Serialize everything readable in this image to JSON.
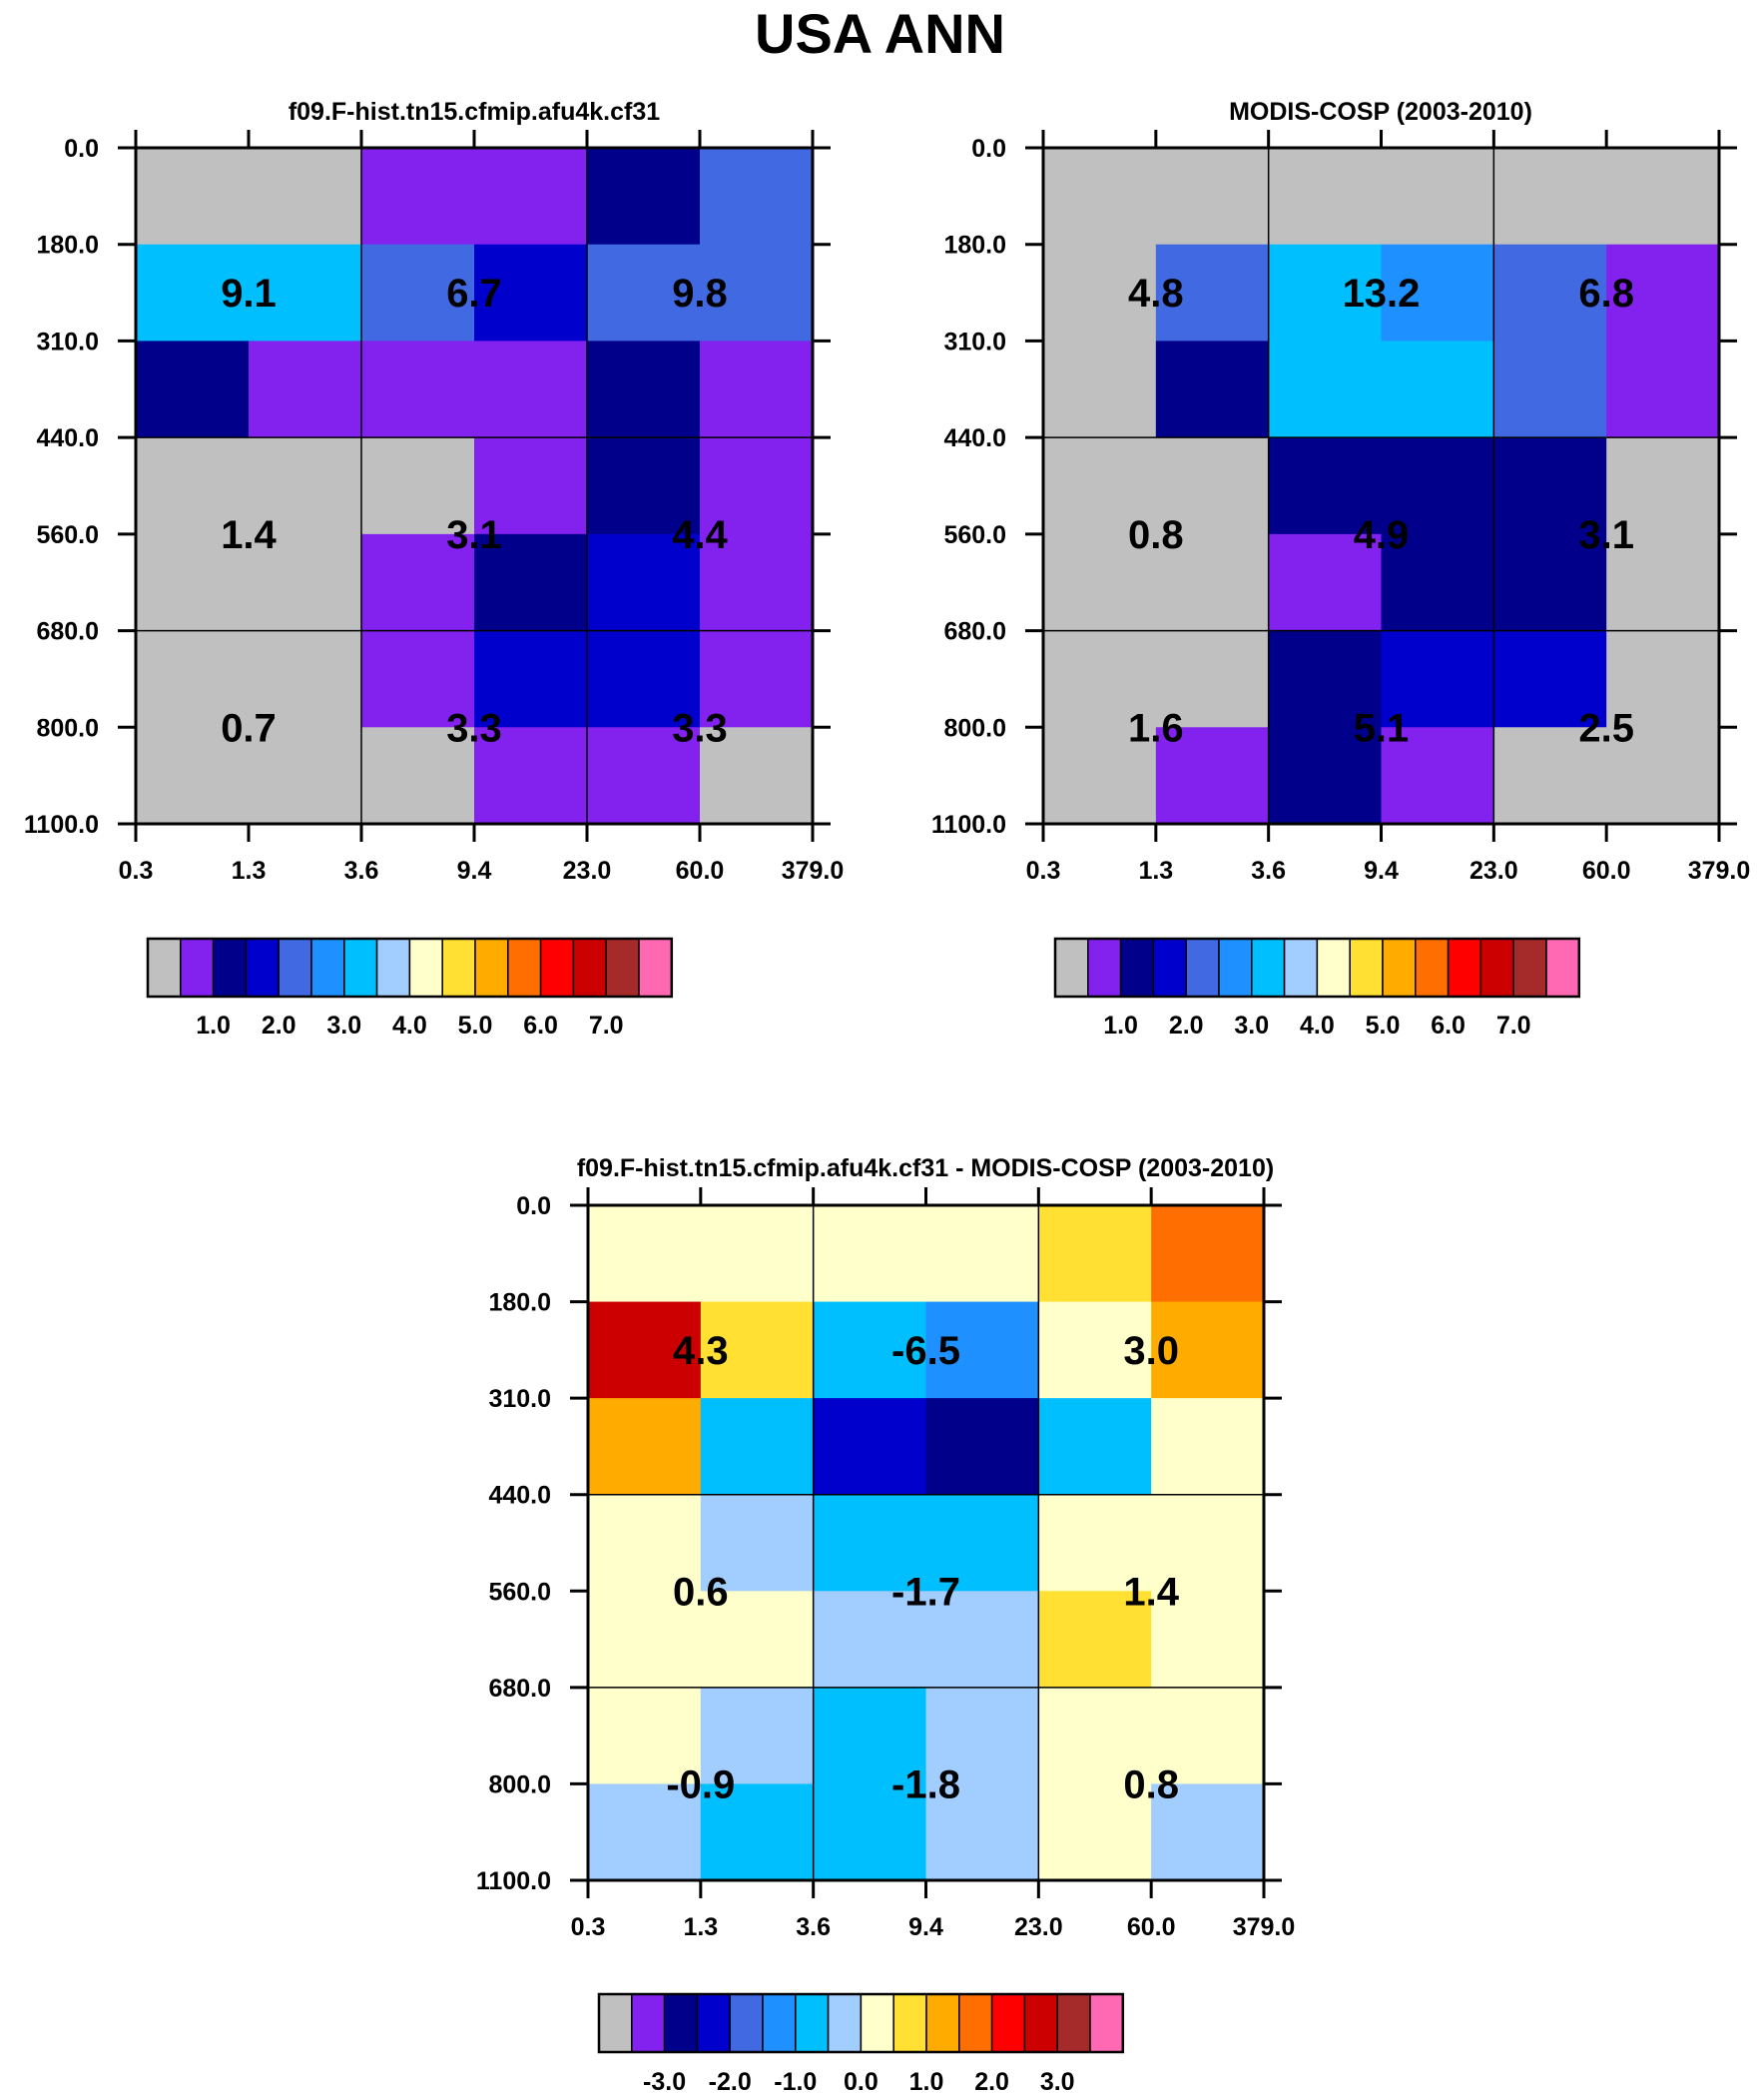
{
  "title": "USA ANN",
  "colors": [
    "#c0c0c0",
    "#8321ee",
    "#00008b",
    "#0000cd",
    "#4169e1",
    "#1e90ff",
    "#00bfff",
    "#a2cdff",
    "#ffffcc",
    "#ffe033",
    "#ffab00",
    "#ff6e00",
    "#ff0000",
    "#cc0000",
    "#a52a2a",
    "#ff69b4"
  ],
  "chart_data": [
    {
      "type": "heatmap",
      "title": "f09.F-hist.tn15.cfmip.afu4k.cf31",
      "x_tick_labels": [
        "0.3",
        "1.3",
        "3.6",
        "9.4",
        "23.0",
        "60.0",
        "379.0"
      ],
      "y_tick_labels": [
        "0.0",
        "180.0",
        "310.0",
        "440.0",
        "560.0",
        "680.0",
        "800.0",
        "1100.0"
      ],
      "cell_color_index": [
        [
          0,
          0,
          1,
          1,
          2,
          4
        ],
        [
          6,
          6,
          4,
          3,
          4,
          4
        ],
        [
          2,
          1,
          1,
          1,
          2,
          1
        ],
        [
          0,
          0,
          0,
          1,
          2,
          1
        ],
        [
          0,
          0,
          1,
          2,
          3,
          1
        ],
        [
          0,
          0,
          1,
          3,
          3,
          1
        ],
        [
          0,
          0,
          0,
          1,
          1,
          0
        ]
      ],
      "box_values": [
        "9.1",
        "6.7",
        "9.8",
        "1.4",
        "3.1",
        "4.4",
        "0.7",
        "3.3",
        "3.3"
      ],
      "colorbar": {
        "tick_labels": [
          "1.0",
          "2.0",
          "3.0",
          "4.0",
          "5.0",
          "6.0",
          "7.0"
        ],
        "first_label_box": 2,
        "color_index": [
          0,
          1,
          2,
          3,
          4,
          5,
          6,
          7,
          8,
          9,
          10,
          11,
          12,
          13,
          14,
          15
        ]
      }
    },
    {
      "type": "heatmap",
      "title": "MODIS-COSP (2003-2010)",
      "x_tick_labels": [
        "0.3",
        "1.3",
        "3.6",
        "9.4",
        "23.0",
        "60.0",
        "379.0"
      ],
      "y_tick_labels": [
        "0.0",
        "180.0",
        "310.0",
        "440.0",
        "560.0",
        "680.0",
        "800.0",
        "1100.0"
      ],
      "cell_color_index": [
        [
          0,
          0,
          0,
          0,
          0,
          0
        ],
        [
          0,
          4,
          6,
          5,
          4,
          1
        ],
        [
          0,
          2,
          6,
          6,
          4,
          1
        ],
        [
          0,
          0,
          2,
          2,
          2,
          0
        ],
        [
          0,
          0,
          1,
          2,
          2,
          0
        ],
        [
          0,
          0,
          2,
          3,
          3,
          0
        ],
        [
          0,
          1,
          2,
          1,
          0,
          0
        ]
      ],
      "box_values": [
        "4.8",
        "13.2",
        "6.8",
        "0.8",
        "4.9",
        "3.1",
        "1.6",
        "5.1",
        "2.5"
      ],
      "colorbar": {
        "tick_labels": [
          "1.0",
          "2.0",
          "3.0",
          "4.0",
          "5.0",
          "6.0",
          "7.0"
        ],
        "first_label_box": 2,
        "color_index": [
          0,
          1,
          2,
          3,
          4,
          5,
          6,
          7,
          8,
          9,
          10,
          11,
          12,
          13,
          14,
          15
        ]
      }
    },
    {
      "type": "heatmap",
      "title": "f09.F-hist.tn15.cfmip.afu4k.cf31 - MODIS-COSP (2003-2010)",
      "x_tick_labels": [
        "0.3",
        "1.3",
        "3.6",
        "9.4",
        "23.0",
        "60.0",
        "379.0"
      ],
      "y_tick_labels": [
        "0.0",
        "180.0",
        "310.0",
        "440.0",
        "560.0",
        "680.0",
        "800.0",
        "1100.0"
      ],
      "cell_color_index": [
        [
          8,
          8,
          8,
          8,
          9,
          11
        ],
        [
          13,
          9,
          6,
          5,
          8,
          10
        ],
        [
          10,
          6,
          3,
          2,
          6,
          8
        ],
        [
          8,
          7,
          6,
          6,
          8,
          8
        ],
        [
          8,
          8,
          7,
          7,
          9,
          8
        ],
        [
          8,
          7,
          6,
          7,
          8,
          8
        ],
        [
          7,
          6,
          6,
          7,
          8,
          7
        ]
      ],
      "box_values": [
        "4.3",
        "-6.5",
        "3.0",
        "0.6",
        "-1.7",
        "1.4",
        "-0.9",
        "-1.8",
        "0.8"
      ],
      "colorbar": {
        "tick_labels": [
          "-3.0",
          "-2.0",
          "-1.0",
          "0.0",
          "1.0",
          "2.0",
          "3.0"
        ],
        "first_label_box": 2,
        "color_index": [
          0,
          1,
          2,
          3,
          4,
          5,
          6,
          7,
          8,
          9,
          10,
          11,
          12,
          13,
          14,
          15
        ]
      }
    }
  ]
}
